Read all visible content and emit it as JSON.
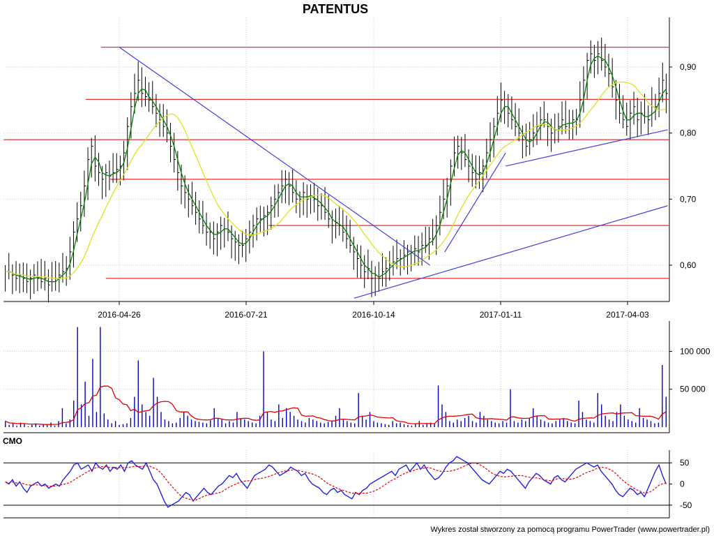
{
  "chart_data": [
    {
      "type": "ohlc",
      "title": "PATENTUS",
      "x_tick_labels": [
        "2016-04-26",
        "2016-07-21",
        "2016-10-14",
        "2017-01-11",
        "2017-04-03"
      ],
      "y_tick_labels": [
        "0,60",
        "0,70",
        "0,80",
        "0,90"
      ],
      "y_ticks": [
        0.6,
        0.7,
        0.8,
        0.9
      ],
      "ylim": [
        0.545,
        0.975
      ],
      "grid": true,
      "series": [
        {
          "role": "price-bars",
          "color": "#000000"
        },
        {
          "role": "moving-average-short",
          "color": "#008000"
        },
        {
          "role": "moving-average-long",
          "color": "#e0e020"
        }
      ],
      "horizontal_levels": [
        0.93,
        0.851,
        0.79,
        0.73,
        0.66,
        0.58
      ],
      "trend_lines": [
        {
          "from": [
            "2016-04-26",
            0.93
          ],
          "to": [
            "2016-11-21",
            0.6
          ]
        },
        {
          "from": [
            "2016-10-01",
            0.55
          ],
          "to": [
            "2017-04-30",
            0.69
          ]
        },
        {
          "from": [
            "2016-12-01",
            0.62
          ],
          "to": [
            "2017-01-11",
            0.77
          ]
        },
        {
          "from": [
            "2017-01-11",
            0.75
          ],
          "to": [
            "2017-04-30",
            0.805
          ]
        }
      ],
      "level_color": "#e83030",
      "trend_color": "#4040d8",
      "values_close": [
        0.59,
        0.59,
        0.585,
        0.58,
        0.585,
        0.58,
        0.575,
        0.58,
        0.585,
        0.58,
        0.575,
        0.58,
        0.57,
        0.575,
        0.58,
        0.585,
        0.59,
        0.595,
        0.62,
        0.65,
        0.67,
        0.69,
        0.72,
        0.76,
        0.78,
        0.75,
        0.74,
        0.73,
        0.74,
        0.735,
        0.74,
        0.745,
        0.75,
        0.77,
        0.81,
        0.84,
        0.86,
        0.88,
        0.86,
        0.855,
        0.85,
        0.84,
        0.83,
        0.82,
        0.81,
        0.8,
        0.78,
        0.76,
        0.74,
        0.72,
        0.71,
        0.7,
        0.69,
        0.68,
        0.67,
        0.66,
        0.65,
        0.65,
        0.64,
        0.65,
        0.66,
        0.655,
        0.65,
        0.64,
        0.635,
        0.63,
        0.63,
        0.64,
        0.65,
        0.66,
        0.67,
        0.67,
        0.675,
        0.68,
        0.69,
        0.7,
        0.71,
        0.72,
        0.73,
        0.72,
        0.71,
        0.7,
        0.7,
        0.71,
        0.7,
        0.705,
        0.7,
        0.69,
        0.69,
        0.68,
        0.67,
        0.66,
        0.665,
        0.66,
        0.65,
        0.64,
        0.63,
        0.62,
        0.61,
        0.6,
        0.59,
        0.595,
        0.58,
        0.585,
        0.58,
        0.59,
        0.595,
        0.6,
        0.605,
        0.61,
        0.61,
        0.615,
        0.62,
        0.62,
        0.625,
        0.62,
        0.63,
        0.63,
        0.64,
        0.64,
        0.66,
        0.68,
        0.7,
        0.72,
        0.75,
        0.77,
        0.78,
        0.77,
        0.76,
        0.75,
        0.74,
        0.73,
        0.74,
        0.75,
        0.77,
        0.79,
        0.81,
        0.83,
        0.85,
        0.84,
        0.83,
        0.82,
        0.81,
        0.8,
        0.79,
        0.78,
        0.79,
        0.8,
        0.81,
        0.82,
        0.82,
        0.81,
        0.8,
        0.805,
        0.81,
        0.82,
        0.81,
        0.815,
        0.82,
        0.82,
        0.85,
        0.88,
        0.91,
        0.92,
        0.91,
        0.92,
        0.91,
        0.9,
        0.89,
        0.87,
        0.85,
        0.83,
        0.82,
        0.81,
        0.83,
        0.84,
        0.82,
        0.83,
        0.825,
        0.82,
        0.84,
        0.84,
        0.86,
        0.88,
        0.86
      ]
    },
    {
      "type": "bar",
      "y_tick_labels": [
        "50 000",
        "100 000"
      ],
      "y_ticks": [
        50000,
        100000
      ],
      "ylim": [
        0,
        140000
      ],
      "series": [
        {
          "role": "volume",
          "color": "#0000c0"
        },
        {
          "role": "volume-average",
          "color": "#e00000"
        }
      ],
      "values": [
        8000,
        3000,
        5000,
        2000,
        6000,
        4000,
        1000,
        3000,
        5000,
        2000,
        4000,
        3000,
        6000,
        2000,
        8000,
        25000,
        5000,
        10000,
        35000,
        132000,
        30000,
        60000,
        15000,
        90000,
        20000,
        132000,
        18000,
        10000,
        5000,
        8000,
        3000,
        4000,
        5000,
        12000,
        40000,
        88000,
        30000,
        20000,
        15000,
        65000,
        40000,
        20000,
        10000,
        8000,
        5000,
        6000,
        12000,
        20000,
        15000,
        10000,
        8000,
        7000,
        6000,
        5000,
        9000,
        25000,
        12000,
        10000,
        5000,
        8000,
        6000,
        20000,
        12000,
        10000,
        8000,
        6000,
        5000,
        15000,
        100000,
        20000,
        10000,
        8000,
        30000,
        12000,
        25000,
        20000,
        15000,
        10000,
        8000,
        6000,
        12000,
        10000,
        8000,
        6000,
        5000,
        7000,
        8000,
        15000,
        25000,
        10000,
        8000,
        6000,
        5000,
        45000,
        15000,
        10000,
        20000,
        8000,
        6000,
        5000,
        4000,
        3000,
        8000,
        5000,
        6000,
        4000,
        3000,
        2000,
        5000,
        8000,
        3000,
        4000,
        6000,
        5000,
        55000,
        30000,
        20000,
        8000,
        6000,
        10000,
        8000,
        12000,
        15000,
        8000,
        6000,
        20000,
        15000,
        10000,
        8000,
        6000,
        5000,
        8000,
        6000,
        50000,
        8000,
        6000,
        10000,
        8000,
        12000,
        25000,
        15000,
        10000,
        8000,
        6000,
        5000,
        8000,
        10000,
        12000,
        8000,
        6000,
        5000,
        35000,
        20000,
        10000,
        8000,
        6000,
        45000,
        30000,
        15000,
        10000,
        8000,
        20000,
        30000,
        15000,
        10000,
        8000,
        6000,
        25000,
        12000,
        10000,
        8000,
        5000,
        6000,
        82000,
        40000
      ]
    },
    {
      "type": "line",
      "title": "CMO",
      "y_tick_labels": [
        "-50",
        "0",
        "50"
      ],
      "y_ticks": [
        -50,
        0,
        50
      ],
      "ylim": [
        -80,
        80
      ],
      "levels": [
        50,
        -50
      ],
      "series": [
        {
          "role": "cmo",
          "color": "#2020e0"
        },
        {
          "role": "cmo-signal",
          "color": "#e00000",
          "dashed": true
        }
      ],
      "values": [
        5,
        0,
        10,
        -5,
        5,
        -10,
        -20,
        -5,
        0,
        5,
        -5,
        0,
        -10,
        -5,
        0,
        -5,
        10,
        20,
        30,
        45,
        50,
        35,
        40,
        45,
        30,
        50,
        40,
        35,
        45,
        30,
        40,
        35,
        45,
        30,
        50,
        55,
        45,
        40,
        35,
        50,
        30,
        10,
        0,
        -20,
        -40,
        -55,
        -50,
        -45,
        -40,
        -30,
        -20,
        -25,
        -40,
        -30,
        -20,
        -10,
        -20,
        -25,
        -15,
        -5,
        0,
        10,
        20,
        15,
        25,
        10,
        0,
        -10,
        5,
        20,
        25,
        30,
        35,
        45,
        40,
        30,
        20,
        25,
        30,
        40,
        35,
        30,
        20,
        25,
        10,
        0,
        -5,
        -10,
        -20,
        -25,
        -15,
        -10,
        -20,
        -15,
        -25,
        -30,
        -35,
        -20,
        -25,
        -15,
        -10,
        0,
        5,
        10,
        15,
        20,
        25,
        30,
        20,
        35,
        40,
        45,
        30,
        40,
        50,
        35,
        45,
        30,
        20,
        10,
        15,
        25,
        40,
        50,
        55,
        65,
        60,
        55,
        50,
        40,
        30,
        20,
        10,
        5,
        0,
        10,
        20,
        30,
        25,
        35,
        30,
        20,
        10,
        0,
        -10,
        5,
        15,
        25,
        20,
        10,
        5,
        0,
        15,
        20,
        10,
        5,
        15,
        25,
        35,
        40,
        45,
        50,
        45,
        40,
        45,
        30,
        20,
        10,
        0,
        -15,
        -25,
        -30,
        -20,
        -10,
        -15,
        -25,
        -20,
        -30,
        -10,
        10,
        30,
        45,
        20,
        0
      ]
    }
  ],
  "footer": "Wykres został stworzony za pomocą programu PowerTrader (www.powertrader.pl)"
}
